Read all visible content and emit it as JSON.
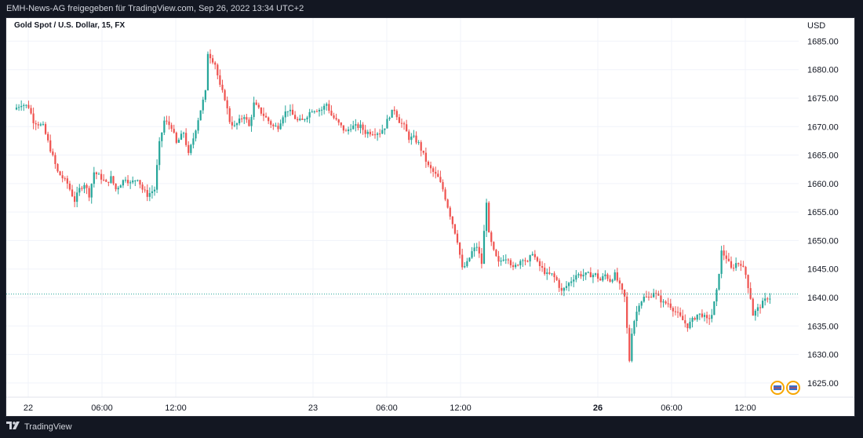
{
  "header": {
    "publish_line": "EMH-News-AG freigegeben für TradingView.com, Sep 26, 2022 13:34 UTC+2"
  },
  "legend": {
    "symbol": "Gold Spot / U.S. Dollar, 15, FX"
  },
  "price_axis": {
    "currency": "USD",
    "ticks": [
      "1685.00",
      "1680.00",
      "1675.00",
      "1670.00",
      "1665.00",
      "1660.00",
      "1655.00",
      "1650.00",
      "1645.00",
      "1640.00",
      "1635.00",
      "1630.00",
      "1625.00"
    ]
  },
  "time_axis": {
    "ticks": [
      "22",
      "06:00",
      "12:00",
      "23",
      "06:00",
      "12:00",
      "26",
      "06:00",
      "12:00"
    ],
    "bold": [
      false,
      false,
      false,
      false,
      false,
      false,
      true,
      false,
      false
    ]
  },
  "footer": {
    "brand": "TradingView"
  },
  "colors": {
    "up": "#26a69a",
    "down": "#ef5350",
    "last_price_line": "#26a69a",
    "grid": "#f0f3fa",
    "background": "#ffffff",
    "frame": "#131722"
  },
  "chart_data": {
    "type": "candlestick",
    "title": "Gold Spot / U.S. Dollar, 15, FX",
    "ylabel": "USD",
    "ylim": [
      1622.5,
      1688.5
    ],
    "grid": true,
    "last_price": 1640.6,
    "sessions": [
      {
        "label": "22",
        "path": [
          [
            0,
            1673
          ],
          [
            3,
            1674
          ],
          [
            6,
            1673.5
          ],
          [
            8,
            1671
          ],
          [
            12,
            1670
          ],
          [
            15,
            1666
          ],
          [
            18,
            1662
          ],
          [
            22,
            1660
          ],
          [
            25,
            1657
          ],
          [
            27,
            1659
          ],
          [
            29,
            1660
          ],
          [
            31,
            1658
          ],
          [
            33,
            1662
          ],
          [
            36,
            1661
          ],
          [
            38,
            1660
          ],
          [
            40,
            1661
          ],
          [
            42,
            1659
          ],
          [
            46,
            1661
          ],
          [
            48,
            1660
          ],
          [
            51,
            1661
          ],
          [
            53,
            1659
          ],
          [
            55,
            1658
          ],
          [
            58,
            1659
          ],
          [
            60,
            1667
          ],
          [
            62,
            1671
          ],
          [
            65,
            1670
          ],
          [
            67,
            1667
          ],
          [
            70,
            1669
          ],
          [
            72,
            1665
          ],
          [
            74,
            1668
          ]
        ]
      },
      {
        "label": "",
        "path": [
          [
            74,
            1668
          ],
          [
            77,
            1673
          ],
          [
            79,
            1676
          ],
          [
            80,
            1683
          ],
          [
            83,
            1681
          ],
          [
            85,
            1677
          ],
          [
            87,
            1675
          ],
          [
            89,
            1671
          ],
          [
            91,
            1670
          ],
          [
            93,
            1671
          ],
          [
            95,
            1672
          ],
          [
            97,
            1670
          ],
          [
            99,
            1674
          ],
          [
            101,
            1673
          ],
          [
            103,
            1672
          ],
          [
            105,
            1671
          ],
          [
            107,
            1670
          ],
          [
            109,
            1670
          ],
          [
            111,
            1672
          ],
          [
            113,
            1673
          ],
          [
            115,
            1672
          ],
          [
            117,
            1671
          ],
          [
            119,
            1671
          ],
          [
            121,
            1672
          ],
          [
            123,
            1673
          ],
          [
            125,
            1673
          ],
          [
            127,
            1673
          ],
          [
            129,
            1674
          ],
          [
            131,
            1672
          ],
          [
            133,
            1671
          ],
          [
            135,
            1670
          ],
          [
            137,
            1669
          ],
          [
            139,
            1670
          ],
          [
            141,
            1670
          ],
          [
            143,
            1670
          ],
          [
            145,
            1669
          ],
          [
            147,
            1669
          ],
          [
            149,
            1669
          ],
          [
            151,
            1669
          ],
          [
            153,
            1670
          ]
        ]
      },
      {
        "label": "23",
        "path": [
          [
            153,
            1670
          ],
          [
            155,
            1672
          ],
          [
            157,
            1673
          ],
          [
            159,
            1671
          ],
          [
            161,
            1670
          ],
          [
            163,
            1668
          ],
          [
            165,
            1668
          ],
          [
            167,
            1667
          ],
          [
            169,
            1665
          ],
          [
            171,
            1663
          ],
          [
            173,
            1662
          ],
          [
            175,
            1661
          ],
          [
            177,
            1659
          ],
          [
            179,
            1656
          ],
          [
            181,
            1653
          ],
          [
            183,
            1650
          ],
          [
            185,
            1645
          ],
          [
            187,
            1646
          ],
          [
            189,
            1648
          ],
          [
            191,
            1649
          ],
          [
            193,
            1646
          ],
          [
            195,
            1657
          ],
          [
            196,
            1651
          ],
          [
            198,
            1648
          ],
          [
            200,
            1646
          ],
          [
            202,
            1647
          ],
          [
            204,
            1647
          ],
          [
            206,
            1645
          ],
          [
            208,
            1646
          ],
          [
            210,
            1647
          ],
          [
            212,
            1646
          ],
          [
            214,
            1648
          ],
          [
            216,
            1646
          ],
          [
            218,
            1645
          ],
          [
            220,
            1644
          ],
          [
            222,
            1644
          ],
          [
            224,
            1643
          ]
        ]
      },
      {
        "label": "",
        "path": [
          [
            224,
            1643
          ],
          [
            226,
            1641
          ],
          [
            228,
            1642
          ],
          [
            230,
            1643
          ],
          [
            232,
            1644
          ],
          [
            234,
            1644
          ],
          [
            236,
            1644
          ],
          [
            238,
            1644
          ],
          [
            240,
            1644
          ],
          [
            242,
            1643
          ],
          [
            244,
            1644
          ],
          [
            246,
            1643
          ],
          [
            248,
            1644
          ],
          [
            250,
            1642
          ],
          [
            252,
            1640
          ],
          [
            254,
            1629
          ],
          [
            255,
            1634
          ],
          [
            256,
            1636
          ],
          [
            258,
            1639
          ],
          [
            260,
            1640
          ],
          [
            262,
            1640
          ],
          [
            264,
            1641
          ],
          [
            266,
            1640
          ],
          [
            268,
            1639
          ],
          [
            270,
            1639
          ],
          [
            272,
            1638
          ],
          [
            274,
            1637
          ],
          [
            276,
            1636
          ],
          [
            278,
            1635
          ],
          [
            280,
            1636
          ],
          [
            282,
            1637
          ],
          [
            284,
            1637
          ],
          [
            286,
            1636
          ],
          [
            288,
            1637
          ],
          [
            290,
            1641
          ],
          [
            292,
            1648
          ],
          [
            294,
            1647
          ],
          [
            296,
            1645
          ],
          [
            298,
            1646
          ],
          [
            300,
            1646
          ],
          [
            302,
            1644
          ],
          [
            304,
            1640
          ],
          [
            305,
            1637
          ],
          [
            307,
            1638
          ],
          [
            309,
            1639
          ],
          [
            311,
            1640
          ]
        ]
      }
    ],
    "time_slots": {
      "count": 312,
      "first_slot_x": 13,
      "slot_width": 3.088
    }
  }
}
